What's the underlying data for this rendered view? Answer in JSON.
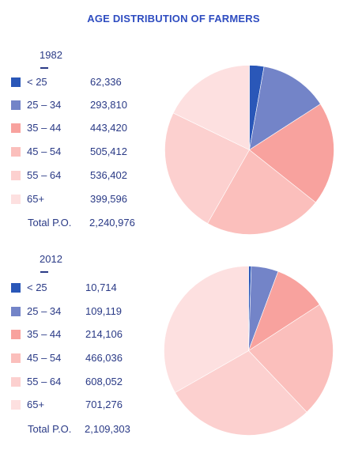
{
  "title": "AGE DISTRIBUTION OF FARMERS",
  "colors": [
    "#2a57b8",
    "#7384c8",
    "#f8a29e",
    "#fbbfbc",
    "#fcd0cf",
    "#fde0e0"
  ],
  "chart_data": [
    {
      "type": "pie",
      "year": "1982",
      "categories": [
        "< 25",
        "25 – 34",
        "35 – 44",
        "45 – 54",
        "55 – 64",
        "65+"
      ],
      "value_labels": [
        "62,336",
        "293,810",
        "443,420",
        "505,412",
        "536,402",
        "399,596"
      ],
      "values": [
        62336,
        293810,
        443420,
        505412,
        536402,
        399596
      ],
      "total_label": "Total P.O.",
      "total_value": "2,240,976"
    },
    {
      "type": "pie",
      "year": "2012",
      "categories": [
        "< 25",
        "25 – 34",
        "35 – 44",
        "45 – 54",
        "55 – 64",
        "65+"
      ],
      "value_labels": [
        "10,714",
        "109,119",
        "214,106",
        "466,036",
        "608,052",
        "701,276"
      ],
      "values": [
        10714,
        109119,
        214106,
        466036,
        608052,
        701276
      ],
      "total_label": "Total P.O.",
      "total_value": "2,109,303"
    }
  ]
}
